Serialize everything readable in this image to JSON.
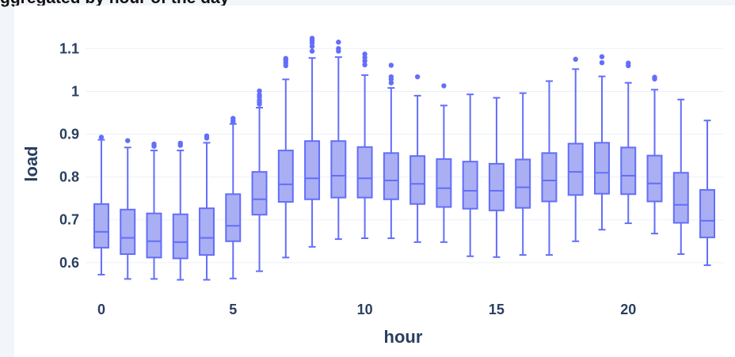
{
  "title": "ggregated by hour of the day",
  "colors": {
    "box_fill": "#a9aff2",
    "box_line": "#636efa",
    "grid": "#ebf0f8",
    "axis_text": "#2a3f5f"
  },
  "chart_data": {
    "type": "box",
    "xlabel": "hour",
    "ylabel": "load",
    "xlim": [
      -0.6,
      23.6
    ],
    "ylim": [
      0.535,
      1.145
    ],
    "xticks": [
      {
        "value": 0,
        "label": "0"
      },
      {
        "value": 5,
        "label": "5"
      },
      {
        "value": 10,
        "label": "10"
      },
      {
        "value": 15,
        "label": "15"
      },
      {
        "value": 20,
        "label": "20"
      }
    ],
    "yticks": [
      {
        "value": 0.6,
        "label": "0.6"
      },
      {
        "value": 0.7,
        "label": "0.7"
      },
      {
        "value": 0.8,
        "label": "0.8"
      },
      {
        "value": 0.9,
        "label": "0.9"
      },
      {
        "value": 1.0,
        "label": "1"
      },
      {
        "value": 1.1,
        "label": "1.1"
      }
    ],
    "grid": true,
    "legend": false,
    "boxes": [
      {
        "x": 0,
        "min": 0.572,
        "q1": 0.635,
        "median": 0.672,
        "q3": 0.737,
        "max": 0.887,
        "outliers": [
          0.893
        ]
      },
      {
        "x": 1,
        "min": 0.562,
        "q1": 0.62,
        "median": 0.658,
        "q3": 0.724,
        "max": 0.869,
        "outliers": [
          0.885
        ]
      },
      {
        "x": 2,
        "min": 0.562,
        "q1": 0.612,
        "median": 0.65,
        "q3": 0.715,
        "max": 0.862,
        "outliers": [
          0.872,
          0.877
        ]
      },
      {
        "x": 3,
        "min": 0.56,
        "q1": 0.61,
        "median": 0.648,
        "q3": 0.713,
        "max": 0.862,
        "outliers": [
          0.874,
          0.879
        ]
      },
      {
        "x": 4,
        "min": 0.56,
        "q1": 0.618,
        "median": 0.658,
        "q3": 0.727,
        "max": 0.88,
        "outliers": [
          0.891,
          0.896
        ]
      },
      {
        "x": 5,
        "min": 0.563,
        "q1": 0.65,
        "median": 0.686,
        "q3": 0.76,
        "max": 0.924,
        "outliers": [
          0.928,
          0.932,
          0.937
        ]
      },
      {
        "x": 6,
        "min": 0.58,
        "q1": 0.712,
        "median": 0.748,
        "q3": 0.812,
        "max": 0.962,
        "outliers": [
          0.97,
          0.975,
          0.98,
          0.987,
          0.992,
          1.001
        ]
      },
      {
        "x": 7,
        "min": 0.612,
        "q1": 0.742,
        "median": 0.783,
        "q3": 0.862,
        "max": 1.028,
        "outliers": [
          1.06,
          1.067,
          1.073,
          1.077
        ]
      },
      {
        "x": 8,
        "min": 0.637,
        "q1": 0.748,
        "median": 0.797,
        "q3": 0.884,
        "max": 1.078,
        "outliers": [
          1.094,
          1.105,
          1.113,
          1.119,
          1.124
        ]
      },
      {
        "x": 9,
        "min": 0.655,
        "q1": 0.752,
        "median": 0.803,
        "q3": 0.884,
        "max": 1.08,
        "outliers": [
          1.094,
          1.1,
          1.115
        ]
      },
      {
        "x": 10,
        "min": 0.657,
        "q1": 0.752,
        "median": 0.797,
        "q3": 0.87,
        "max": 1.038,
        "outliers": [
          1.062,
          1.071,
          1.079,
          1.087
        ]
      },
      {
        "x": 11,
        "min": 0.657,
        "q1": 0.748,
        "median": 0.792,
        "q3": 0.856,
        "max": 1.008,
        "outliers": [
          1.02,
          1.028,
          1.034,
          1.061
        ]
      },
      {
        "x": 12,
        "min": 0.648,
        "q1": 0.737,
        "median": 0.784,
        "q3": 0.849,
        "max": 0.99,
        "outliers": [
          1.034
        ]
      },
      {
        "x": 13,
        "min": 0.648,
        "q1": 0.73,
        "median": 0.774,
        "q3": 0.842,
        "max": 0.967,
        "outliers": [
          1.013
        ]
      },
      {
        "x": 14,
        "min": 0.615,
        "q1": 0.726,
        "median": 0.768,
        "q3": 0.836,
        "max": 0.993,
        "outliers": []
      },
      {
        "x": 15,
        "min": 0.613,
        "q1": 0.722,
        "median": 0.768,
        "q3": 0.831,
        "max": 0.985,
        "outliers": []
      },
      {
        "x": 16,
        "min": 0.618,
        "q1": 0.728,
        "median": 0.776,
        "q3": 0.841,
        "max": 0.996,
        "outliers": []
      },
      {
        "x": 17,
        "min": 0.618,
        "q1": 0.743,
        "median": 0.792,
        "q3": 0.856,
        "max": 1.024,
        "outliers": []
      },
      {
        "x": 18,
        "min": 0.65,
        "q1": 0.758,
        "median": 0.812,
        "q3": 0.878,
        "max": 1.052,
        "outliers": [
          1.075
        ]
      },
      {
        "x": 19,
        "min": 0.677,
        "q1": 0.761,
        "median": 0.81,
        "q3": 0.88,
        "max": 1.035,
        "outliers": [
          1.067,
          1.081
        ]
      },
      {
        "x": 20,
        "min": 0.692,
        "q1": 0.76,
        "median": 0.803,
        "q3": 0.869,
        "max": 1.02,
        "outliers": [
          1.06,
          1.066
        ]
      },
      {
        "x": 21,
        "min": 0.668,
        "q1": 0.743,
        "median": 0.785,
        "q3": 0.85,
        "max": 1.004,
        "outliers": [
          1.029,
          1.033
        ]
      },
      {
        "x": 22,
        "min": 0.62,
        "q1": 0.693,
        "median": 0.735,
        "q3": 0.81,
        "max": 0.981,
        "outliers": []
      },
      {
        "x": 23,
        "min": 0.594,
        "q1": 0.659,
        "median": 0.698,
        "q3": 0.77,
        "max": 0.932,
        "outliers": []
      }
    ]
  }
}
